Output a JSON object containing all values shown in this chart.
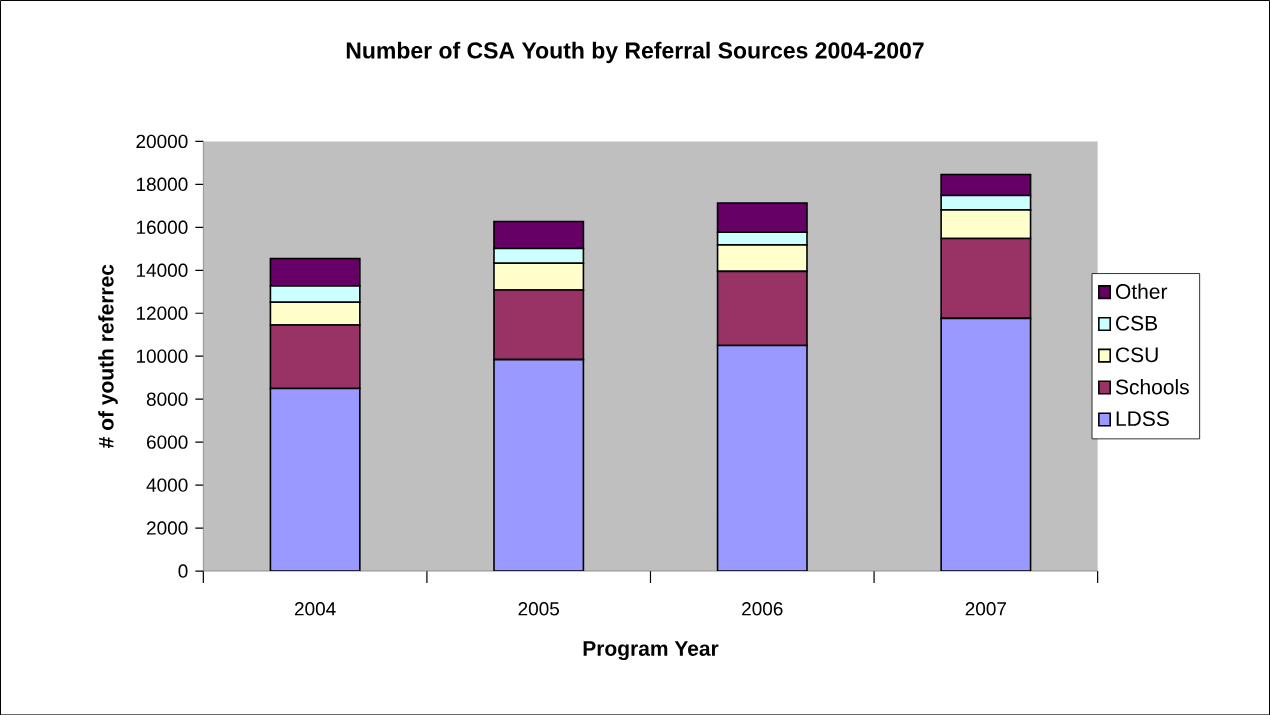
{
  "chart_data": {
    "type": "bar",
    "title": "Number of CSA Youth by Referral Sources 2004-2007",
    "xlabel": "Program Year",
    "ylabel": "# of youth referrec",
    "categories": [
      "2004",
      "2005",
      "2006",
      "2007"
    ],
    "stacked": true,
    "series": [
      {
        "name": "LDSS",
        "color": "#9999ff",
        "values": [
          8500,
          9840,
          10500,
          11760
        ]
      },
      {
        "name": "Schools",
        "color": "#993366",
        "values": [
          2950,
          3240,
          3450,
          3720
        ]
      },
      {
        "name": "CSU",
        "color": "#ffffcc",
        "values": [
          1060,
          1250,
          1230,
          1330
        ]
      },
      {
        "name": "CSB",
        "color": "#ccffff",
        "values": [
          760,
          680,
          590,
          670
        ]
      },
      {
        "name": "Other",
        "color": "#660066",
        "values": [
          1280,
          1260,
          1360,
          980
        ]
      }
    ],
    "ylim": [
      0,
      20000
    ],
    "yticks": [
      0,
      2000,
      4000,
      6000,
      8000,
      10000,
      12000,
      14000,
      16000,
      18000,
      20000
    ],
    "grid": false,
    "legend": "right"
  }
}
